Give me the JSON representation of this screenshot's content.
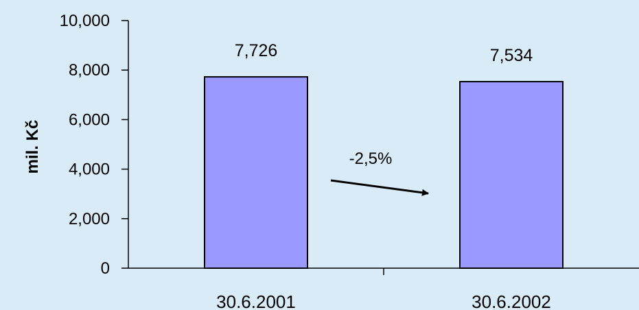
{
  "chart_data": {
    "type": "bar",
    "title": "",
    "xlabel": "",
    "ylabel": "mil. Kč",
    "categories": [
      "30.6.2001",
      "30.6.2002"
    ],
    "values": [
      7726,
      7534
    ],
    "data_labels": [
      "7,726",
      "7,534"
    ],
    "ylim": [
      0,
      10000
    ],
    "yticks": [
      {
        "value": 0,
        "label": "0"
      },
      {
        "value": 2000,
        "label": "2,000"
      },
      {
        "value": 4000,
        "label": "4,000"
      },
      {
        "value": 6000,
        "label": "6,000"
      },
      {
        "value": 8000,
        "label": "8,000"
      },
      {
        "value": 10000,
        "label": "10,000"
      }
    ],
    "grid": false,
    "legend": "none",
    "annotation": {
      "text": "-2,5%",
      "arrow": "from 30.6.2001 toward 30.6.2002"
    },
    "colors": {
      "bar_fill": "#9999ff",
      "bar_stroke": "#000000",
      "background": "#d9ebf6"
    }
  }
}
